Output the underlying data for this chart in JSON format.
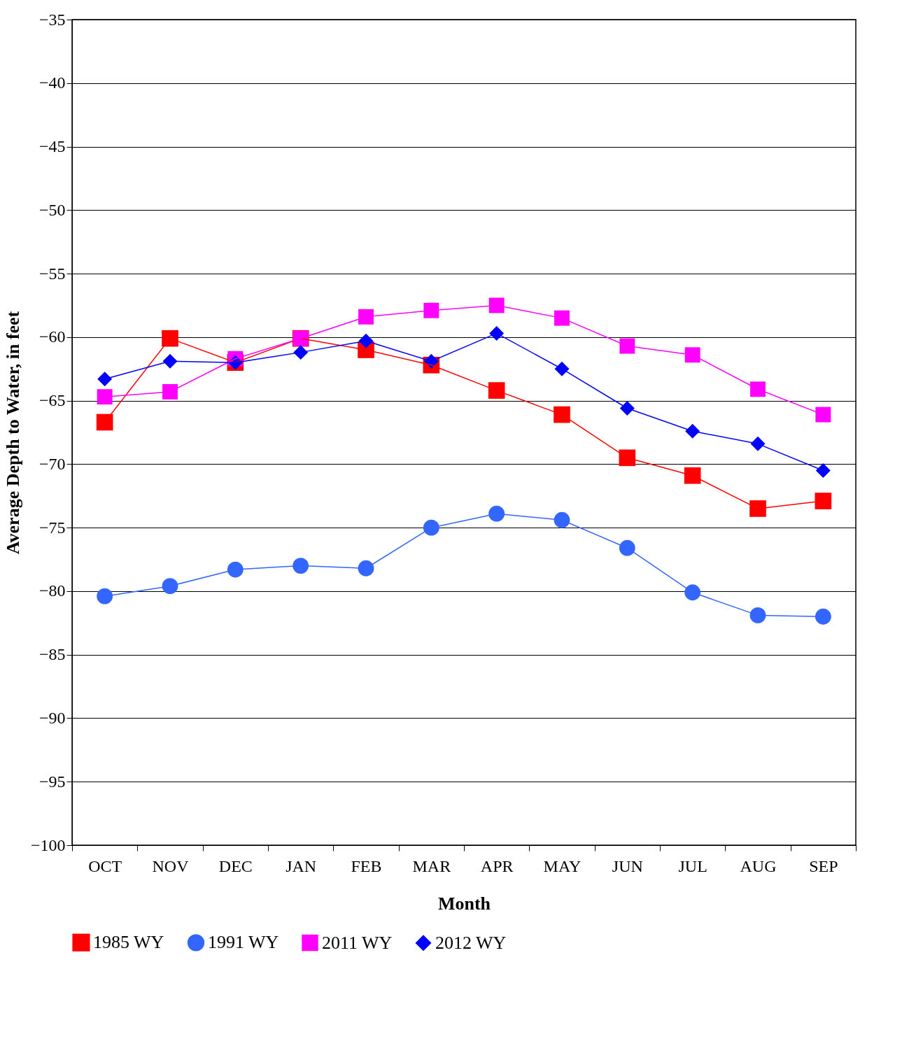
{
  "chart_data": {
    "type": "line",
    "xlabel": "Month",
    "ylabel": "Average Depth to Water, in feet",
    "categories": [
      "OCT",
      "NOV",
      "DEC",
      "JAN",
      "FEB",
      "MAR",
      "APR",
      "MAY",
      "JUN",
      "JUL",
      "AUG",
      "SEP"
    ],
    "series": [
      {
        "name": "1985 WY",
        "color": "#ff0000",
        "marker": "square",
        "values": [
          -66.7,
          -60.1,
          -62.0,
          -60.1,
          -61.0,
          -62.2,
          -64.2,
          -66.1,
          -69.5,
          -70.9,
          -73.5,
          -72.9
        ]
      },
      {
        "name": "1991 WY",
        "color": "#3366ff",
        "marker": "circle",
        "values": [
          -80.4,
          -79.6,
          -78.3,
          -78.0,
          -78.2,
          -75.0,
          -73.9,
          -74.4,
          -76.6,
          -80.1,
          -81.9,
          -82.0
        ]
      },
      {
        "name": "2011 WY",
        "color": "#ff00ff",
        "marker": "square",
        "values": [
          -64.7,
          -64.3,
          -61.7,
          -60.1,
          -58.4,
          -57.9,
          -57.5,
          -58.5,
          -60.7,
          -61.4,
          -64.1,
          -66.1
        ]
      },
      {
        "name": "2012 WY",
        "color": "#0000ff",
        "marker": "diamond",
        "values": [
          -63.3,
          -61.9,
          -62.0,
          -61.2,
          -60.3,
          -61.9,
          -59.7,
          -62.5,
          -65.6,
          -67.4,
          -68.4,
          -70.5
        ]
      }
    ],
    "ylim": [
      -100,
      -35
    ],
    "yticks": [
      -100,
      -95,
      -90,
      -85,
      -80,
      -75,
      -70,
      -65,
      -60,
      -55,
      -50,
      -45,
      -40,
      -35
    ],
    "grid": "y",
    "legend": "bottom",
    "line_style": "solid"
  }
}
